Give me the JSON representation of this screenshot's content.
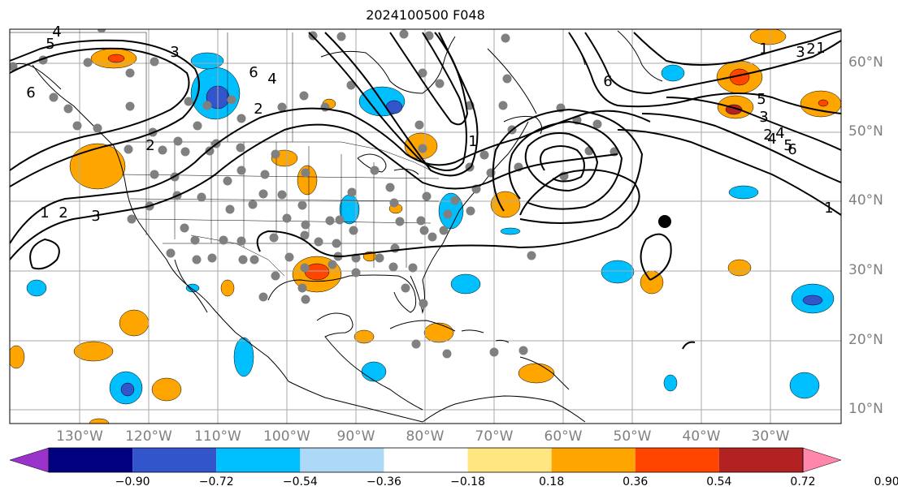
{
  "title": "2024100500 F048",
  "lat_labels": [
    "60°N",
    "50°N",
    "40°N",
    "30°N",
    "20°N",
    "10°N"
  ],
  "lon_labels": [
    "130°W",
    "120°W",
    "110°W",
    "100°W",
    "90°W",
    "80°W",
    "70°W",
    "60°W",
    "50°W",
    "40°W",
    "30°W"
  ],
  "colorbar": {
    "tick_labels": [
      "−0.90",
      "−0.72",
      "−0.54",
      "−0.36",
      "−0.18",
      "0.18",
      "0.36",
      "0.54",
      "0.72",
      "0.90"
    ],
    "colors": [
      "#9933cc",
      "#000080",
      "#3355cc",
      "#00bfff",
      "#add8f6",
      "#ffffff",
      "#ffe680",
      "#ffa500",
      "#ff4500",
      "#b22222",
      "#ff88aa"
    ]
  },
  "contour_labels": [
    "6",
    "5",
    "4",
    "3",
    "2",
    "1",
    "2",
    "3",
    "6",
    "4",
    "2",
    "1",
    "6",
    "5",
    "4",
    "3",
    "2",
    "1",
    "1",
    "2",
    "3",
    "4",
    "5",
    "6",
    "1"
  ],
  "colors": {
    "grid": "#aaaaaa",
    "coast": "#000000",
    "station": "#808080",
    "contour": "#000000"
  }
}
